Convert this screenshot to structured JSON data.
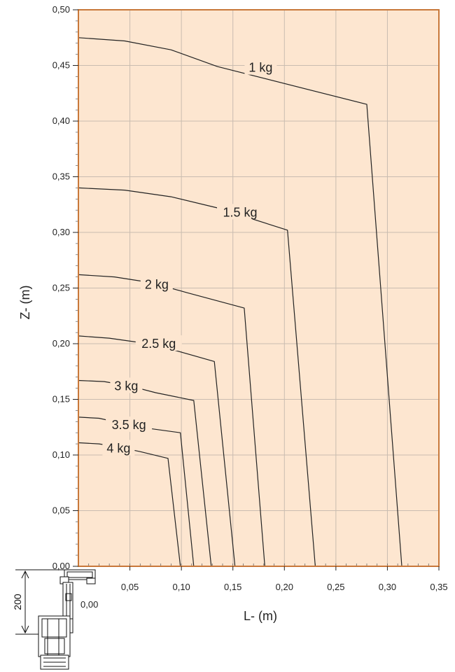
{
  "chart_data": {
    "type": "line",
    "xlabel": "L- (m)",
    "ylabel": "Z- (m)",
    "xlim": [
      0,
      0.35
    ],
    "ylim": [
      0,
      0.5
    ],
    "x_ticks": [
      "0,05",
      "0,10",
      "0,15",
      "0,20",
      "0,25",
      "0,30",
      "0,35"
    ],
    "y_ticks": [
      "0,00",
      "0,05",
      "0,10",
      "0,15",
      "0,20",
      "0,25",
      "0,30",
      "0,35",
      "0,40",
      "0,45",
      "0,50"
    ],
    "origin_label": "0,00",
    "grid": true,
    "colors": {
      "plot_bg": "#fde6d0",
      "frame": "#c8783a",
      "grid": "#c9bcb0",
      "curve": "#222222"
    },
    "series": [
      {
        "label": "1 kg",
        "label_at": [
          0.177,
          0.448
        ],
        "points": [
          [
            0,
            0.475
          ],
          [
            0.045,
            0.472
          ],
          [
            0.09,
            0.464
          ],
          [
            0.135,
            0.449
          ],
          [
            0.28,
            0.415
          ],
          [
            0.314,
            0
          ]
        ]
      },
      {
        "label": "1.5 kg",
        "label_at": [
          0.157,
          0.318
        ],
        "points": [
          [
            0,
            0.34
          ],
          [
            0.045,
            0.338
          ],
          [
            0.09,
            0.332
          ],
          [
            0.135,
            0.322
          ],
          [
            0.203,
            0.302
          ],
          [
            0.23,
            0
          ]
        ]
      },
      {
        "label": "2 kg",
        "label_at": [
          0.076,
          0.253
        ],
        "points": [
          [
            0,
            0.262
          ],
          [
            0.035,
            0.26
          ],
          [
            0.07,
            0.255
          ],
          [
            0.105,
            0.246
          ],
          [
            0.161,
            0.232
          ],
          [
            0.181,
            0
          ]
        ]
      },
      {
        "label": "2.5 kg",
        "label_at": [
          0.078,
          0.2
        ],
        "points": [
          [
            0,
            0.207
          ],
          [
            0.03,
            0.205
          ],
          [
            0.06,
            0.201
          ],
          [
            0.09,
            0.195
          ],
          [
            0.132,
            0.184
          ],
          [
            0.152,
            0
          ]
        ]
      },
      {
        "label": "3 kg",
        "label_at": [
          0.0465,
          0.162
        ],
        "points": [
          [
            0,
            0.167
          ],
          [
            0.025,
            0.166
          ],
          [
            0.05,
            0.162
          ],
          [
            0.075,
            0.156
          ],
          [
            0.112,
            0.149
          ],
          [
            0.129,
            0
          ]
        ]
      },
      {
        "label": "3.5 kg",
        "label_at": [
          0.049,
          0.127
        ],
        "points": [
          [
            0,
            0.134
          ],
          [
            0.02,
            0.133
          ],
          [
            0.04,
            0.129
          ],
          [
            0.06,
            0.125
          ],
          [
            0.099,
            0.12
          ],
          [
            0.112,
            0
          ]
        ]
      },
      {
        "label": "4 kg",
        "label_at": [
          0.039,
          0.106
        ],
        "points": [
          [
            0,
            0.111
          ],
          [
            0.02,
            0.11
          ],
          [
            0.04,
            0.107
          ],
          [
            0.06,
            0.103
          ],
          [
            0.087,
            0.097
          ],
          [
            0.099,
            0
          ]
        ]
      }
    ]
  },
  "dimension": {
    "value": "200"
  }
}
